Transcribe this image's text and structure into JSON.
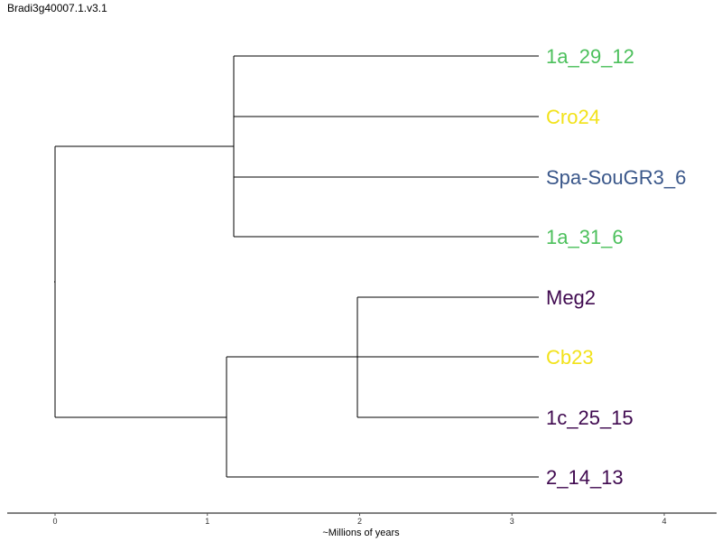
{
  "title": "Bradi3g40007.1.v3.1",
  "axis": {
    "label": "~Millions of years",
    "ticks": [
      0,
      1,
      2,
      3,
      4
    ]
  },
  "colors": {
    "green": "#4CC05C",
    "yellow": "#F2E21A",
    "blue": "#3A578A",
    "purple": "#400A50",
    "branch": "#000000"
  },
  "tips": [
    {
      "label": "1a_29_12",
      "color": "#4CC05C"
    },
    {
      "label": "Cro24",
      "color": "#F2E21A"
    },
    {
      "label": "Spa-SouGR3_6",
      "color": "#3A578A"
    },
    {
      "label": "1a_31_6",
      "color": "#4CC05C"
    },
    {
      "label": "Meg2",
      "color": "#400A50"
    },
    {
      "label": "Cb23",
      "color": "#F2E21A"
    },
    {
      "label": "1c_25_15",
      "color": "#400A50"
    },
    {
      "label": "2_14_13",
      "color": "#400A50"
    }
  ]
}
